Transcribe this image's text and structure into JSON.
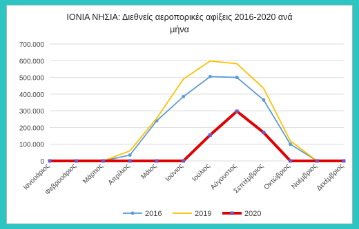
{
  "chart_data": {
    "type": "line",
    "title_line1": "ΙΟΝΙΑ ΝΗΣΙΑ: Διεθνείς αεροπορικές αφίξεις  2016-2020 ανά",
    "title_line2": "μήνα",
    "categories": [
      "Ιανουάριος",
      "Φεβρουάριος",
      "Μάρτιος",
      "Απρίλιος",
      "Μάιος",
      "Ιούνιος",
      "Ιούλιος",
      "Αύγουστος",
      "Σεπτέμβριος",
      "Οκτώβριος",
      "Νοέμβριος",
      "Δεκέμβριος"
    ],
    "yticks": [
      "0",
      "100.000",
      "200.000",
      "300.000",
      "400.000",
      "500.000",
      "600.000",
      "700.000"
    ],
    "ylim": [
      0,
      700000
    ],
    "grid": true,
    "legend_position": "bottom",
    "series": [
      {
        "name": "2016",
        "color": "#5b9bd5",
        "values": [
          0,
          0,
          0,
          35000,
          240000,
          385000,
          505000,
          500000,
          365000,
          100000,
          0,
          0
        ]
      },
      {
        "name": "2019",
        "color": "#ffc000",
        "values": [
          0,
          0,
          0,
          60000,
          255000,
          490000,
          598000,
          582000,
          435000,
          120000,
          0,
          0
        ]
      },
      {
        "name": "2020",
        "color": "#e00000",
        "values": [
          0,
          0,
          0,
          0,
          0,
          0,
          155000,
          297000,
          170000,
          0,
          0,
          0
        ]
      }
    ]
  }
}
